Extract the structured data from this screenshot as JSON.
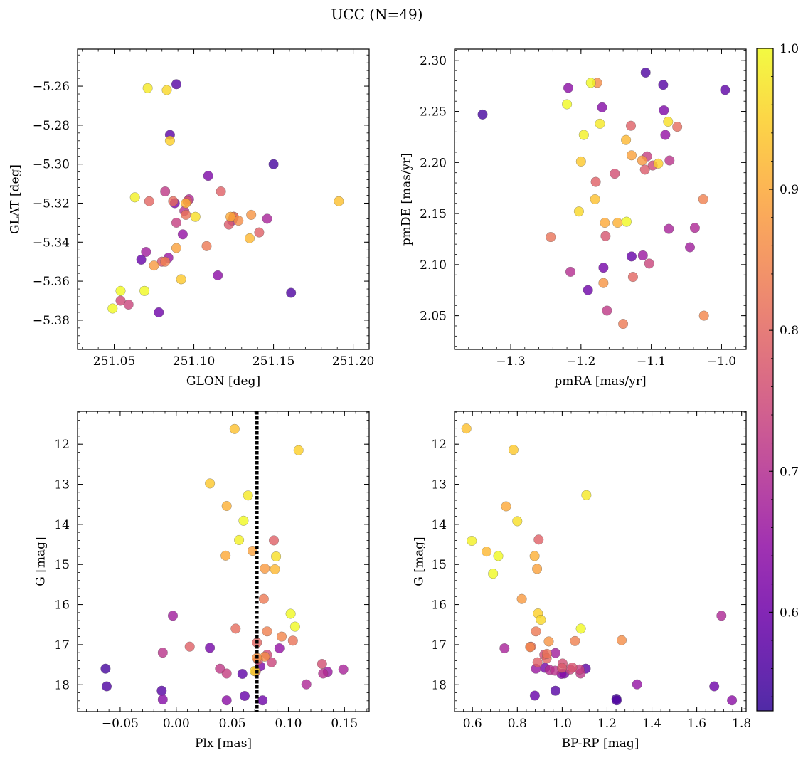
{
  "chart_data": {
    "type": "scatter",
    "title": "UCC (N=49)",
    "colorbar": {
      "colormap": "plasma",
      "range": [
        0.53,
        1.0
      ],
      "ticks": [
        0.6,
        0.7,
        0.8,
        0.9,
        1.0
      ],
      "tick_labels": [
        "0.6",
        "0.7",
        "0.8",
        "0.9",
        "1.0"
      ]
    },
    "membership_prob": [
      0.55,
      0.56,
      0.57,
      0.58,
      0.59,
      0.6,
      0.61,
      0.62,
      0.63,
      0.64,
      0.65,
      0.66,
      0.67,
      0.68,
      0.69,
      0.7,
      0.71,
      0.72,
      0.73,
      0.74,
      0.75,
      0.76,
      0.77,
      0.78,
      0.79,
      0.8,
      0.81,
      0.82,
      0.83,
      0.84,
      0.85,
      0.86,
      0.87,
      0.88,
      0.89,
      0.9,
      0.91,
      0.92,
      0.93,
      0.94,
      0.95,
      0.96,
      0.97,
      0.98,
      0.99,
      1.0,
      1.0,
      1.0,
      0.79
    ],
    "panels": [
      {
        "id": "glon-glat",
        "xlabel": "GLON [deg]",
        "ylabel": "GLAT [deg]",
        "xlim": [
          251.027,
          251.21
        ],
        "ylim": [
          -5.395,
          -5.241
        ],
        "y_inverted": false,
        "xticks": [
          251.05,
          251.1,
          251.15,
          251.2
        ],
        "xtick_labels": [
          "251.05",
          "251.10",
          "251.15",
          "251.20"
        ],
        "yticks": [
          -5.38,
          -5.36,
          -5.34,
          -5.32,
          -5.3,
          -5.28,
          -5.26
        ],
        "ytick_labels": [
          "−5.38",
          "−5.36",
          "−5.34",
          "−5.32",
          "−5.30",
          "−5.28",
          "−5.26"
        ],
        "x": [
          251.15,
          251.161,
          251.089,
          251.085,
          251.067,
          251.078,
          251.088,
          251.109,
          251.125,
          251.115,
          251.093,
          251.084,
          251.07,
          251.146,
          251.097,
          251.124,
          251.094,
          251.082,
          251.089,
          251.059,
          251.054,
          251.08,
          251.096,
          251.122,
          251.141,
          251.072,
          251.087,
          251.095,
          251.108,
          251.082,
          251.125,
          251.128,
          251.136,
          251.075,
          251.089,
          251.123,
          251.095,
          251.135,
          251.191,
          251.092,
          251.085,
          251.083,
          251.101,
          251.071,
          251.063,
          251.049,
          251.054,
          251.069,
          251.117
        ],
        "y": [
          -5.3,
          -5.366,
          -5.259,
          -5.285,
          -5.349,
          -5.376,
          -5.32,
          -5.306,
          -5.327,
          -5.357,
          -5.336,
          -5.348,
          -5.345,
          -5.328,
          -5.318,
          -5.329,
          -5.324,
          -5.314,
          -5.33,
          -5.372,
          -5.37,
          -5.35,
          -5.319,
          -5.331,
          -5.335,
          -5.319,
          -5.319,
          -5.326,
          -5.342,
          -5.35,
          -5.327,
          -5.329,
          -5.326,
          -5.352,
          -5.343,
          -5.327,
          -5.32,
          -5.338,
          -5.319,
          -5.359,
          -5.288,
          -5.262,
          -5.327,
          -5.261,
          -5.317,
          -5.374,
          -5.365,
          -5.365,
          -5.314
        ]
      },
      {
        "id": "pmra-pmde",
        "xlabel": "pmRA [mas/yr]",
        "ylabel": "pmDE [mas/yr]",
        "xlim": [
          -1.38,
          -0.965
        ],
        "ylim": [
          2.017,
          2.311
        ],
        "y_inverted": false,
        "xticks": [
          -1.3,
          -1.2,
          -1.1,
          -1.0
        ],
        "xtick_labels": [
          "−1.3",
          "−1.2",
          "−1.1",
          "−1.0"
        ],
        "yticks": [
          2.05,
          2.1,
          2.15,
          2.2,
          2.25,
          2.3
        ],
        "ytick_labels": [
          "2.05",
          "2.10",
          "2.15",
          "2.20",
          "2.25",
          "2.30"
        ],
        "x": [
          -1.34,
          -1.108,
          -1.083,
          -0.995,
          -1.128,
          -1.19,
          -1.168,
          -1.082,
          -1.17,
          -1.218,
          -1.08,
          -1.112,
          -1.045,
          -1.075,
          -1.038,
          -1.215,
          -1.074,
          -1.163,
          -1.106,
          -1.103,
          -1.098,
          -1.152,
          -1.165,
          -1.109,
          -1.179,
          -1.126,
          -1.063,
          -1.243,
          -1.14,
          -1.026,
          -1.025,
          -1.177,
          -1.168,
          -1.113,
          -1.128,
          -1.166,
          -1.148,
          -1.136,
          -1.18,
          -1.2,
          -1.09,
          -1.203,
          -1.076,
          -1.173,
          -1.196,
          -1.186,
          -1.22,
          -1.135,
          -1.129
        ],
        "y": [
          2.247,
          2.288,
          2.276,
          2.271,
          2.108,
          2.075,
          2.097,
          2.251,
          2.254,
          2.273,
          2.227,
          2.109,
          2.117,
          2.135,
          2.136,
          2.093,
          2.202,
          2.055,
          2.206,
          2.101,
          2.197,
          2.189,
          2.128,
          2.193,
          2.181,
          2.088,
          2.235,
          2.127,
          2.042,
          2.164,
          2.05,
          2.278,
          2.082,
          2.202,
          2.207,
          2.141,
          2.141,
          2.222,
          2.164,
          2.201,
          2.199,
          2.152,
          2.24,
          2.238,
          2.227,
          2.278,
          2.257,
          2.142,
          2.236
        ]
      },
      {
        "id": "plx-g",
        "xlabel": "Plx [mas]",
        "ylabel": "G [mag]",
        "xlim": [
          -0.088,
          0.172
        ],
        "ylim": [
          18.67,
          11.18
        ],
        "y_inverted": true,
        "xticks": [
          -0.05,
          0.0,
          0.05,
          0.1,
          0.15
        ],
        "xtick_labels": [
          "−0.05",
          "0.00",
          "0.05",
          "0.10",
          "0.15"
        ],
        "yticks": [
          12,
          13,
          14,
          15,
          16,
          17,
          18
        ],
        "ytick_labels": [
          "12",
          "13",
          "14",
          "15",
          "16",
          "17",
          "18"
        ],
        "vline": {
          "x": 0.072,
          "style": "dotted",
          "color": "#000000"
        },
        "x": [
          -0.063,
          -0.062,
          -0.013,
          0.059,
          0.061,
          0.077,
          0.03,
          0.075,
          -0.012,
          0.045,
          0.092,
          0.135,
          -0.003,
          0.149,
          0.116,
          0.131,
          -0.012,
          0.039,
          0.045,
          0.085,
          0.081,
          0.13,
          0.071,
          0.073,
          0.012,
          0.072,
          0.053,
          0.104,
          0.078,
          0.081,
          0.094,
          0.079,
          0.072,
          0.079,
          0.068,
          0.044,
          0.045,
          0.088,
          0.052,
          0.03,
          0.109,
          0.07,
          0.089,
          0.064,
          0.056,
          0.06,
          0.106,
          0.102,
          0.087
        ],
        "y": [
          17.6,
          18.04,
          18.15,
          17.73,
          18.28,
          18.39,
          17.08,
          17.54,
          18.37,
          18.39,
          17.09,
          17.68,
          16.28,
          17.62,
          17.99,
          17.72,
          17.2,
          17.6,
          17.72,
          17.44,
          17.25,
          17.48,
          17.67,
          17.38,
          17.05,
          16.95,
          16.6,
          16.9,
          15.86,
          16.67,
          16.8,
          17.3,
          17.33,
          15.1,
          14.66,
          14.78,
          13.54,
          15.12,
          11.62,
          12.98,
          12.15,
          17.66,
          14.8,
          13.28,
          14.39,
          13.91,
          16.55,
          16.23,
          14.4
        ]
      },
      {
        "id": "bprp-g",
        "xlabel": "BP-RP [mag]",
        "ylabel": "G [mag]",
        "xlim": [
          0.52,
          1.82
        ],
        "ylim": [
          18.67,
          11.18
        ],
        "y_inverted": true,
        "xticks": [
          0.6,
          0.8,
          1.0,
          1.2,
          1.4,
          1.6,
          1.8
        ],
        "xtick_labels": [
          "0.6",
          "0.8",
          "1.0",
          "1.2",
          "1.4",
          "1.6",
          "1.8"
        ],
        "yticks": [
          12,
          13,
          14,
          15,
          16,
          17,
          18
        ],
        "ytick_labels": [
          "12",
          "13",
          "14",
          "15",
          "16",
          "17",
          "18"
        ],
        "x": [
          1.242,
          1.243,
          0.97,
          1.105,
          0.878,
          1.678,
          0.924,
          1.01,
          0.997,
          1.757,
          1.334,
          0.883,
          0.97,
          0.743,
          1.71,
          0.944,
          0.968,
          1.082,
          1.077,
          1.036,
          0.92,
          1.002,
          1.045,
          0.999,
          0.89,
          0.931,
          0.861,
          0.932,
          0.883,
          1.057,
          0.857,
          1.265,
          0.94,
          0.82,
          0.888,
          0.75,
          0.877,
          0.663,
          0.573,
          0.783,
          0.892,
          0.905,
          0.8,
          1.108,
          0.597,
          0.715,
          0.692,
          1.083,
          0.895
        ],
        "y": [
          18.35,
          18.39,
          18.15,
          17.6,
          18.27,
          18.04,
          17.58,
          17.72,
          17.73,
          18.39,
          17.99,
          17.6,
          17.21,
          17.09,
          16.28,
          17.63,
          17.65,
          17.72,
          17.62,
          17.62,
          17.25,
          17.47,
          17.57,
          17.58,
          17.44,
          17.34,
          17.05,
          17.23,
          16.67,
          16.91,
          17.06,
          16.89,
          16.92,
          15.86,
          15.11,
          13.55,
          14.79,
          14.68,
          11.61,
          12.14,
          16.22,
          16.38,
          13.92,
          13.27,
          14.41,
          14.79,
          15.23,
          16.6,
          14.38
        ]
      }
    ]
  }
}
